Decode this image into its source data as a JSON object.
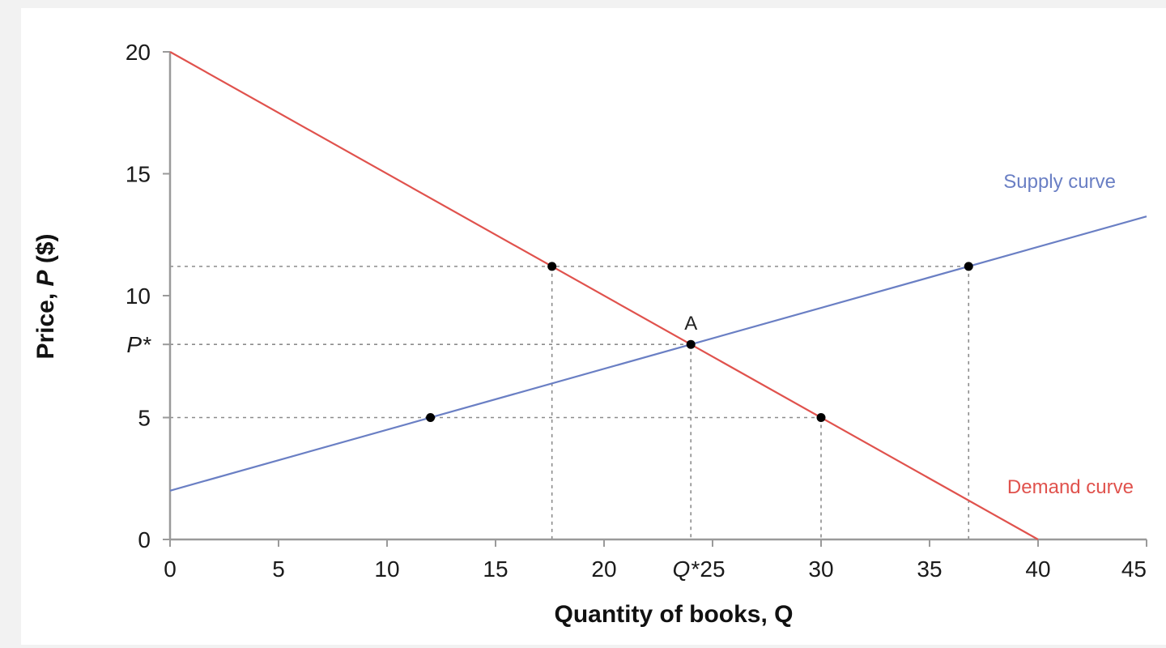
{
  "chart_data": {
    "type": "line",
    "title": "",
    "xlabel": "Quantity of books, Q",
    "ylabel_prefix": "Price, ",
    "ylabel_var": "P",
    "ylabel_suffix": " ($)",
    "xlim": [
      0,
      45
    ],
    "ylim": [
      0,
      20
    ],
    "x_ticks": [
      0,
      5,
      10,
      15,
      20,
      25,
      30,
      35,
      40,
      45
    ],
    "y_ticks": [
      0,
      5,
      10,
      15,
      20
    ],
    "extra_x_tick": {
      "label": "Q*",
      "value": 24
    },
    "extra_y_tick": {
      "label": "P*",
      "value": 8
    },
    "series": [
      {
        "name": "Supply curve",
        "color": "#6a7fc4",
        "x": [
          0,
          45
        ],
        "y": [
          2,
          13.25
        ]
      },
      {
        "name": "Demand curve",
        "color": "#e0524d",
        "x": [
          0,
          40
        ],
        "y": [
          20,
          0
        ]
      }
    ],
    "points": [
      {
        "x": 17.6,
        "y": 11.2,
        "label": ""
      },
      {
        "x": 36.8,
        "y": 11.2,
        "label": ""
      },
      {
        "x": 24,
        "y": 8,
        "label": "A"
      },
      {
        "x": 12,
        "y": 5,
        "label": ""
      },
      {
        "x": 30,
        "y": 5,
        "label": ""
      }
    ],
    "guides": {
      "horizontal": [
        {
          "y": 11.2,
          "x_end": 36.8
        },
        {
          "y": 8,
          "x_end": 24
        },
        {
          "y": 5,
          "x_end": 30
        }
      ],
      "vertical": [
        {
          "x": 17.6,
          "y_end": 11.2
        },
        {
          "x": 24,
          "y_end": 8
        },
        {
          "x": 30,
          "y_end": 5
        },
        {
          "x": 36.8,
          "y_end": 11.2
        }
      ]
    },
    "grid": false,
    "legend": "none"
  }
}
